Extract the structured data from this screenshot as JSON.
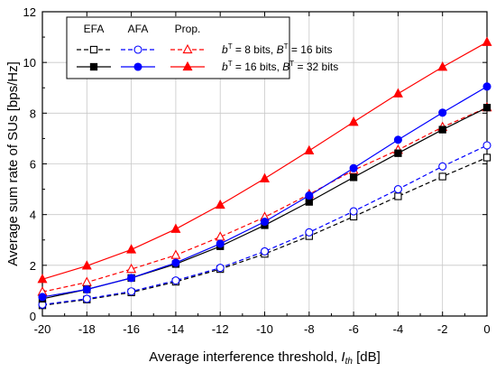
{
  "chart_data": {
    "type": "line",
    "xlabel": "Average interference threshold, ",
    "xlabel_italic": "I",
    "xlabel_sub": "th",
    "xlabel_unit": " [dB]",
    "ylabel": "Average sum rate of SUs [bps/Hz]",
    "xlim": [
      -20,
      0
    ],
    "ylim": [
      0,
      12
    ],
    "x_ticks": [
      "-20",
      "-18",
      "-16",
      "-14",
      "-12",
      "-10",
      "-8",
      "-6",
      "-4",
      "-2",
      "0"
    ],
    "y_ticks": [
      "0",
      "2",
      "4",
      "6",
      "8",
      "10",
      "12"
    ],
    "grid": true,
    "legend": {
      "position": "top-left",
      "column_headers": [
        "EFA",
        "AFA",
        "Prop."
      ],
      "row1": {
        "b": "b",
        "b_sup": "T",
        "b_val": " =  8 bits, ",
        "B": "B",
        "B_sup": "T",
        "B_val": " = 16 bits"
      },
      "row2": {
        "b": "b",
        "b_sup": "T",
        "b_val": " = 16 bits, ",
        "B": "B",
        "B_sup": "T",
        "B_val": " = 32 bits"
      }
    },
    "x": [
      -20,
      -18,
      -16,
      -14,
      -12,
      -10,
      -8,
      -6,
      -4,
      -2,
      0
    ],
    "series": [
      {
        "id": "efa8",
        "color": "#000000",
        "dashed": true,
        "marker": "square",
        "filled": false,
        "values": [
          0.42,
          0.65,
          0.93,
          1.35,
          1.85,
          2.45,
          3.15,
          3.92,
          4.72,
          5.5,
          6.25
        ]
      },
      {
        "id": "afa8",
        "color": "#0000ff",
        "dashed": true,
        "marker": "circle",
        "filled": false,
        "values": [
          0.45,
          0.68,
          0.97,
          1.4,
          1.9,
          2.55,
          3.3,
          4.13,
          5.0,
          5.9,
          6.73
        ]
      },
      {
        "id": "prop8",
        "color": "#ff0000",
        "dashed": true,
        "marker": "triangle",
        "filled": false,
        "values": [
          0.95,
          1.33,
          1.85,
          2.4,
          3.12,
          3.9,
          4.8,
          5.75,
          6.55,
          7.45,
          8.22
        ]
      },
      {
        "id": "efa16",
        "color": "#000000",
        "dashed": false,
        "marker": "square",
        "filled": true,
        "values": [
          0.68,
          1.05,
          1.5,
          2.05,
          2.75,
          3.58,
          4.5,
          5.47,
          6.42,
          7.35,
          8.22
        ]
      },
      {
        "id": "afa16",
        "color": "#0000ff",
        "dashed": false,
        "marker": "circle",
        "filled": true,
        "values": [
          0.75,
          1.05,
          1.5,
          2.1,
          2.85,
          3.72,
          4.75,
          5.83,
          6.95,
          8.02,
          9.05
        ]
      },
      {
        "id": "prop16",
        "color": "#ff0000",
        "dashed": false,
        "marker": "triangle",
        "filled": true,
        "values": [
          1.45,
          1.98,
          2.62,
          3.43,
          4.38,
          5.42,
          6.52,
          7.65,
          8.77,
          9.82,
          10.8
        ]
      }
    ]
  }
}
